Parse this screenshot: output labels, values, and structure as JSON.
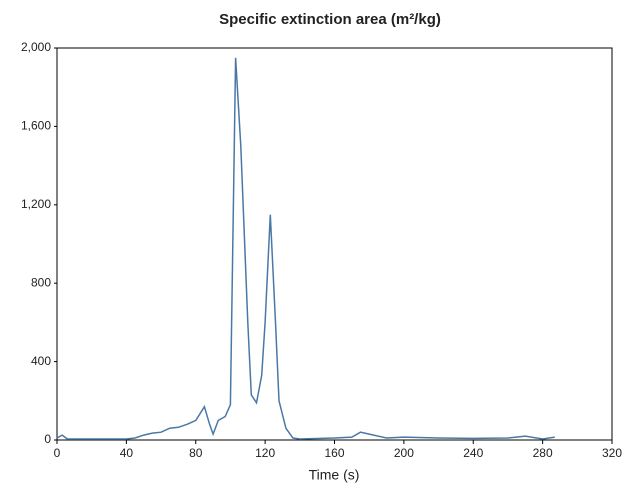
{
  "chart_data": {
    "type": "line",
    "title": "Specific extinction area (m²/kg)",
    "x_label": "Time (s)",
    "x": [
      0,
      3,
      6,
      20,
      40,
      45,
      50,
      55,
      60,
      65,
      70,
      75,
      80,
      85,
      88,
      90,
      93,
      97,
      100,
      103,
      106,
      110,
      112,
      115,
      118,
      120,
      123,
      126,
      128,
      132,
      136,
      140,
      160,
      170,
      175,
      180,
      190,
      200,
      220,
      240,
      260,
      270,
      280,
      287
    ],
    "series": [
      {
        "color": "#4a78a6",
        "values": [
          10,
          25,
          5,
          5,
          5,
          10,
          25,
          35,
          40,
          60,
          65,
          80,
          100,
          170,
          80,
          30,
          100,
          120,
          180,
          1950,
          1500,
          600,
          230,
          190,
          330,
          600,
          1150,
          600,
          200,
          60,
          10,
          5,
          10,
          15,
          40,
          30,
          10,
          15,
          10,
          8,
          10,
          20,
          5,
          15
        ]
      }
    ],
    "xlim": [
      0,
      320
    ],
    "xticks": [
      0,
      40,
      80,
      120,
      160,
      200,
      240,
      280,
      320
    ],
    "ylim": [
      0,
      2000
    ],
    "yticks": [
      0,
      400,
      800,
      {
        "value": 1200,
        "label": "1,200"
      },
      {
        "value": 1600,
        "label": "1,600"
      },
      {
        "value": 2000,
        "label": "2,000"
      }
    ],
    "grid": false
  }
}
